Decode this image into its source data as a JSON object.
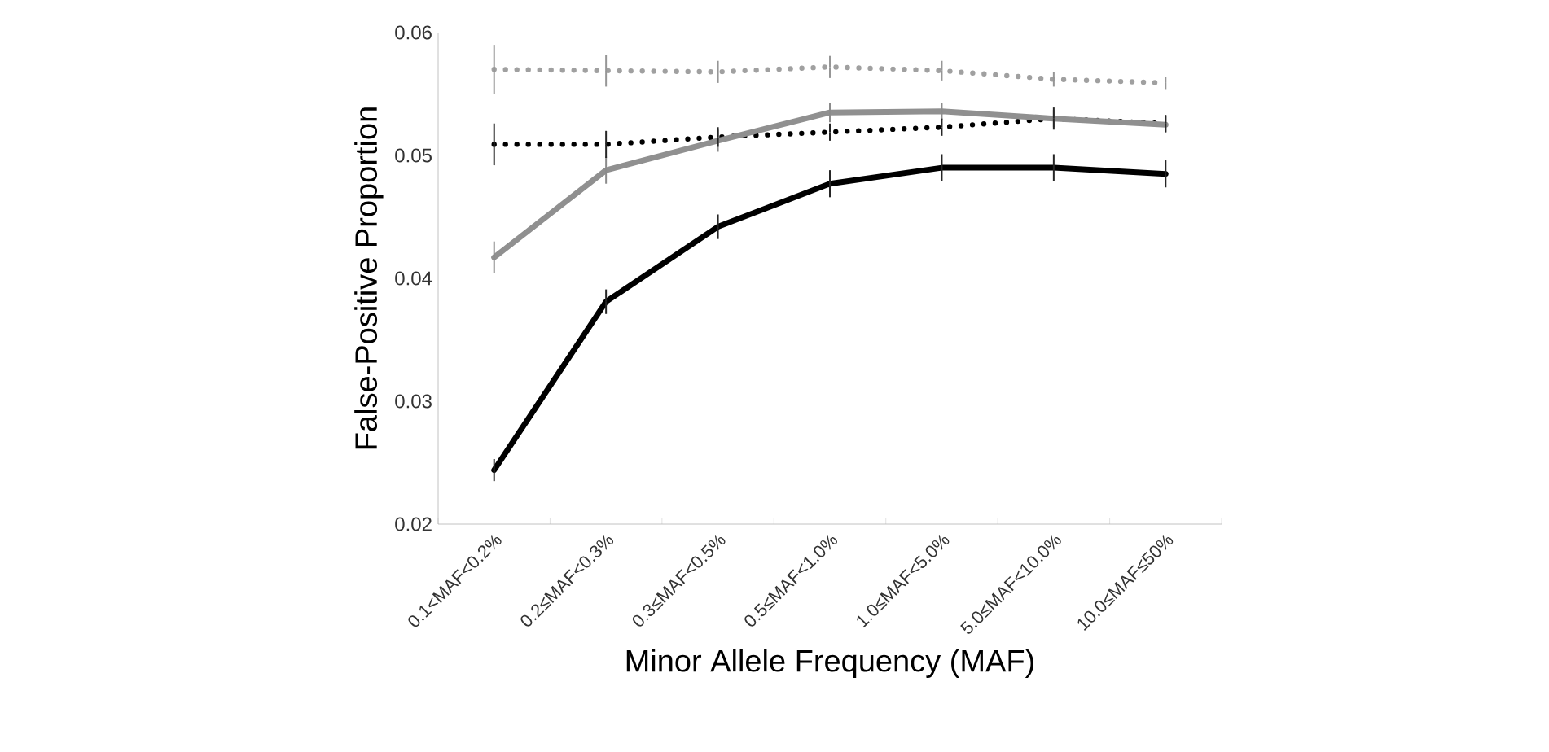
{
  "chart_data": {
    "type": "line",
    "xlabel": "Minor Allele Frequency (MAF)",
    "ylabel": "False-Positive Proportion",
    "categories": [
      "0.1<MAF<0.2%",
      "0.2≤MAF<0.3%",
      "0.3≤MAF<0.5%",
      "0.5≤MAF<1.0%",
      "1.0≤MAF<5.0%",
      "5.0≤MAF<10.0%",
      "10.0≤MAF≤50%"
    ],
    "ylim": [
      0.02,
      0.06
    ],
    "yticks": [
      0.02,
      0.03,
      0.04,
      0.05,
      0.06
    ],
    "grid": false,
    "marker": "none",
    "series": [
      {
        "color": "#a0a0a0",
        "line_style": "dotted",
        "values": [
          0.057,
          0.0569,
          0.0568,
          0.0572,
          0.0569,
          0.0562,
          0.0559
        ],
        "errors": [
          0.002,
          0.0013,
          0.0009,
          0.0009,
          0.0008,
          0.0006,
          0.0005
        ]
      },
      {
        "color": "#000000",
        "line_style": "dotted",
        "values": [
          0.0509,
          0.0509,
          0.0515,
          0.0519,
          0.0523,
          0.053,
          0.0526
        ],
        "errors": [
          0.0017,
          0.0011,
          0.0008,
          0.0007,
          0.0007,
          0.0009,
          0.0007
        ]
      },
      {
        "color": "#909090",
        "line_style": "solid",
        "values": [
          0.0417,
          0.0488,
          0.0512,
          0.0535,
          0.0536,
          0.053,
          0.0525
        ],
        "errors": [
          0.0013,
          0.0011,
          0.0009,
          0.0008,
          0.0007,
          0.0007,
          0.0007
        ]
      },
      {
        "color": "#000000",
        "line_style": "solid",
        "values": [
          0.0244,
          0.0381,
          0.0442,
          0.0477,
          0.049,
          0.049,
          0.0485
        ],
        "errors": [
          0.0009,
          0.001,
          0.001,
          0.0011,
          0.0011,
          0.0011,
          0.0011
        ]
      }
    ]
  }
}
